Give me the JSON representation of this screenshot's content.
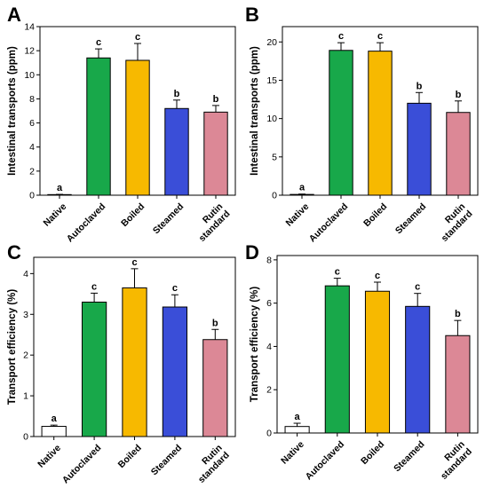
{
  "chart_data": [
    {
      "panel": "A",
      "type": "bar",
      "ylabel": "Intestinal transports (ppm)",
      "ylim": [
        0,
        14
      ],
      "yticks": [
        0,
        2,
        4,
        6,
        8,
        10,
        12,
        14
      ],
      "categories": [
        [
          "Native"
        ],
        [
          "Autoclaved"
        ],
        [
          "Boiled"
        ],
        [
          "Steamed"
        ],
        [
          "Rutin",
          "standard"
        ]
      ],
      "values": [
        0.05,
        11.4,
        11.2,
        7.2,
        6.9
      ],
      "errors": [
        0.02,
        0.75,
        1.4,
        0.7,
        0.55
      ],
      "labels": [
        "a",
        "c",
        "c",
        "b",
        "b"
      ],
      "colors": [
        "#ffffff",
        "#18a84a",
        "#f7b900",
        "#3a4ed8",
        "#dc8896"
      ]
    },
    {
      "panel": "B",
      "type": "bar",
      "ylabel": "Intestinal transports (ppm)",
      "ylim": [
        0,
        22
      ],
      "yticks": [
        0,
        5,
        10,
        15,
        20
      ],
      "categories": [
        [
          "Native"
        ],
        [
          "Autoclaved"
        ],
        [
          "Boiled"
        ],
        [
          "Steamed"
        ],
        [
          "Rutin",
          "standard"
        ]
      ],
      "values": [
        0.1,
        18.9,
        18.8,
        12.0,
        10.8
      ],
      "errors": [
        0.05,
        1.0,
        1.1,
        1.4,
        1.5
      ],
      "labels": [
        "a",
        "c",
        "c",
        "b",
        "b"
      ],
      "colors": [
        "#ffffff",
        "#18a84a",
        "#f7b900",
        "#3a4ed8",
        "#dc8896"
      ]
    },
    {
      "panel": "C",
      "type": "bar",
      "ylabel": "Transport efficiency (%)",
      "ylim": [
        0,
        4.4
      ],
      "yticks": [
        0,
        1,
        2,
        3,
        4
      ],
      "categories": [
        [
          "Native"
        ],
        [
          "Autoclaved"
        ],
        [
          "Boiled"
        ],
        [
          "Steamed"
        ],
        [
          "Rutin",
          "standard"
        ]
      ],
      "values": [
        0.25,
        3.3,
        3.65,
        3.18,
        2.38
      ],
      "errors": [
        0.03,
        0.22,
        0.47,
        0.3,
        0.25
      ],
      "labels": [
        "a",
        "c",
        "c",
        "c",
        "b"
      ],
      "colors": [
        "#ffffff",
        "#18a84a",
        "#f7b900",
        "#3a4ed8",
        "#dc8896"
      ]
    },
    {
      "panel": "D",
      "type": "bar",
      "ylabel": "Transport efficiency (%)",
      "ylim": [
        0,
        8.2
      ],
      "yticks": [
        0,
        2,
        4,
        6,
        8
      ],
      "categories": [
        [
          "Native"
        ],
        [
          "Autoclaved"
        ],
        [
          "Boiled"
        ],
        [
          "Steamed"
        ],
        [
          "Rutin",
          "standard"
        ]
      ],
      "values": [
        0.3,
        6.8,
        6.55,
        5.85,
        4.5
      ],
      "errors": [
        0.15,
        0.35,
        0.42,
        0.6,
        0.7
      ],
      "labels": [
        "a",
        "c",
        "c",
        "c",
        "b"
      ],
      "colors": [
        "#ffffff",
        "#18a84a",
        "#f7b900",
        "#3a4ed8",
        "#dc8896"
      ]
    }
  ]
}
